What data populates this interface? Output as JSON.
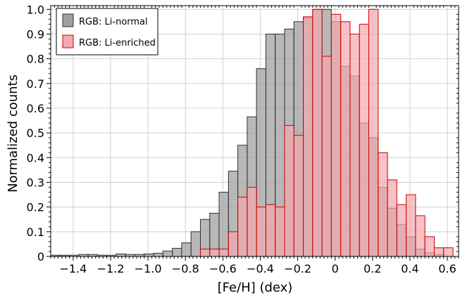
{
  "chart_data": {
    "type": "bar",
    "subtype": "histogram",
    "xlabel": "[Fe/H] (dex)",
    "ylabel": "Normalized counts",
    "xlim": [
      -1.52,
      0.66
    ],
    "ylim": [
      0,
      1.015
    ],
    "grid": true,
    "legend_position": "top-left",
    "bin_width": 0.05,
    "x_ticks": [
      -1.4,
      -1.2,
      -1.0,
      -0.8,
      -0.6,
      -0.4,
      -0.2,
      0,
      0.2,
      0.4,
      0.6
    ],
    "x_tick_labels": [
      "−1.4",
      "−1.2",
      "−1.0",
      "−0.8",
      "−0.6",
      "−0.4",
      "−0.2",
      "0",
      "0.2",
      "0.4",
      "0.6"
    ],
    "y_ticks": [
      0,
      0.1,
      0.2,
      0.3,
      0.4,
      0.5,
      0.6,
      0.7,
      0.8,
      0.9,
      1.0
    ],
    "y_tick_labels": [
      "0",
      "0.1",
      "0.2",
      "0.3",
      "0.4",
      "0.5",
      "0.6",
      "0.7",
      "0.8",
      "0.9",
      "1.0"
    ],
    "series": [
      {
        "name": "RGB: Li-normal",
        "color": "#a0a0a0",
        "edge": "#303030",
        "bins": [
          [
            -1.52,
            0.005
          ],
          [
            -1.47,
            0.005
          ],
          [
            -1.42,
            0.005
          ],
          [
            -1.37,
            0.008
          ],
          [
            -1.32,
            0.008
          ],
          [
            -1.27,
            0.005
          ],
          [
            -1.22,
            0.005
          ],
          [
            -1.17,
            0.01
          ],
          [
            -1.12,
            0.008
          ],
          [
            -1.07,
            0.008
          ],
          [
            -1.02,
            0.01
          ],
          [
            -0.97,
            0.013
          ],
          [
            -0.92,
            0.022
          ],
          [
            -0.87,
            0.033
          ],
          [
            -0.82,
            0.055
          ],
          [
            -0.77,
            0.1
          ],
          [
            -0.72,
            0.15
          ],
          [
            -0.67,
            0.175
          ],
          [
            -0.62,
            0.26
          ],
          [
            -0.57,
            0.345
          ],
          [
            -0.52,
            0.45
          ],
          [
            -0.47,
            0.565
          ],
          [
            -0.42,
            0.76
          ],
          [
            -0.37,
            0.9
          ],
          [
            -0.32,
            0.9
          ],
          [
            -0.27,
            0.92
          ],
          [
            -0.22,
            0.95
          ],
          [
            -0.17,
            0.965
          ],
          [
            -0.12,
            1.0
          ],
          [
            -0.07,
            1.0
          ],
          [
            -0.02,
            0.95
          ],
          [
            0.03,
            0.77
          ],
          [
            0.08,
            0.73
          ],
          [
            0.13,
            0.54
          ],
          [
            0.18,
            0.48
          ],
          [
            0.23,
            0.28
          ],
          [
            0.28,
            0.195
          ],
          [
            0.33,
            0.13
          ],
          [
            0.38,
            0.08
          ],
          [
            0.43,
            0.03
          ],
          [
            0.48,
            0.015
          ],
          [
            0.53,
            0.008
          ]
        ]
      },
      {
        "name": "RGB: Li-enriched",
        "color": "#f4a8ae",
        "edge": "#cc0000",
        "bins": [
          [
            -0.72,
            0.03
          ],
          [
            -0.67,
            0.03
          ],
          [
            -0.62,
            0.03
          ],
          [
            -0.57,
            0.1
          ],
          [
            -0.52,
            0.24
          ],
          [
            -0.47,
            0.28
          ],
          [
            -0.42,
            0.2
          ],
          [
            -0.37,
            0.21
          ],
          [
            -0.32,
            0.2
          ],
          [
            -0.27,
            0.53
          ],
          [
            -0.22,
            0.49
          ],
          [
            -0.17,
            0.97
          ],
          [
            -0.12,
            1.0
          ],
          [
            -0.07,
            0.81
          ],
          [
            -0.02,
            0.98
          ],
          [
            0.03,
            0.95
          ],
          [
            0.08,
            0.9
          ],
          [
            0.13,
            0.94
          ],
          [
            0.18,
            1.0
          ],
          [
            0.23,
            0.42
          ],
          [
            0.28,
            0.31
          ],
          [
            0.33,
            0.21
          ],
          [
            0.38,
            0.25
          ],
          [
            0.43,
            0.165
          ],
          [
            0.48,
            0.08
          ],
          [
            0.53,
            0.035
          ],
          [
            0.58,
            0.035
          ]
        ]
      }
    ]
  }
}
